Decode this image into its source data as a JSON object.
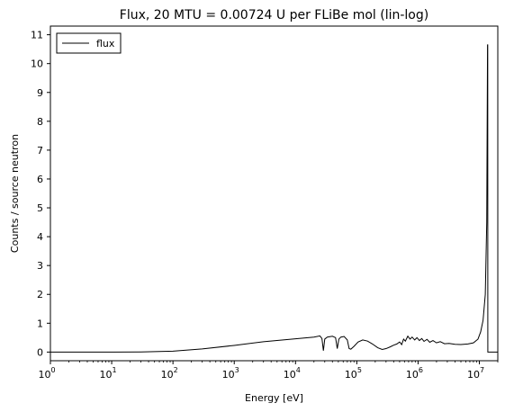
{
  "chart_data": {
    "type": "line",
    "title": "Flux, 20 MTU = 0.00724 U per FLiBe mol (lin-log)",
    "xlabel": "Energy [eV]",
    "ylabel": "Counts / source neutron",
    "xscale": "log",
    "xlim": [
      1,
      20000000
    ],
    "ylim": [
      -0.3,
      11.3
    ],
    "x_tick_labels": [
      {
        "base": "10",
        "exp": "0"
      },
      {
        "base": "10",
        "exp": "1"
      },
      {
        "base": "10",
        "exp": "2"
      },
      {
        "base": "10",
        "exp": "3"
      },
      {
        "base": "10",
        "exp": "4"
      },
      {
        "base": "10",
        "exp": "5"
      },
      {
        "base": "10",
        "exp": "6"
      },
      {
        "base": "10",
        "exp": "7"
      }
    ],
    "y_ticks": [
      0,
      1,
      2,
      3,
      4,
      5,
      6,
      7,
      8,
      9,
      10,
      11
    ],
    "legend_position": "upper-left",
    "grid": false,
    "series": [
      {
        "name": "flux",
        "color": "#000000",
        "points": [
          [
            1,
            0.0
          ],
          [
            10,
            0.0
          ],
          [
            30,
            0.005
          ],
          [
            100,
            0.03
          ],
          [
            300,
            0.11
          ],
          [
            1000,
            0.23
          ],
          [
            3000,
            0.36
          ],
          [
            10000,
            0.46
          ],
          [
            20000,
            0.52
          ],
          [
            25000,
            0.56
          ],
          [
            27000,
            0.47
          ],
          [
            28500,
            0.05
          ],
          [
            30000,
            0.45
          ],
          [
            33000,
            0.52
          ],
          [
            40000,
            0.55
          ],
          [
            45000,
            0.5
          ],
          [
            48000,
            0.12
          ],
          [
            51000,
            0.45
          ],
          [
            55000,
            0.52
          ],
          [
            62000,
            0.54
          ],
          [
            70000,
            0.42
          ],
          [
            75000,
            0.12
          ],
          [
            80000,
            0.1
          ],
          [
            90000,
            0.2
          ],
          [
            105000,
            0.35
          ],
          [
            125000,
            0.42
          ],
          [
            150000,
            0.38
          ],
          [
            180000,
            0.28
          ],
          [
            220000,
            0.15
          ],
          [
            260000,
            0.09
          ],
          [
            300000,
            0.12
          ],
          [
            350000,
            0.18
          ],
          [
            400000,
            0.24
          ],
          [
            450000,
            0.28
          ],
          [
            500000,
            0.35
          ],
          [
            540000,
            0.26
          ],
          [
            580000,
            0.45
          ],
          [
            620000,
            0.38
          ],
          [
            680000,
            0.55
          ],
          [
            740000,
            0.45
          ],
          [
            800000,
            0.52
          ],
          [
            880000,
            0.42
          ],
          [
            960000,
            0.5
          ],
          [
            1050000,
            0.4
          ],
          [
            1150000,
            0.47
          ],
          [
            1250000,
            0.37
          ],
          [
            1400000,
            0.44
          ],
          [
            1550000,
            0.34
          ],
          [
            1750000,
            0.4
          ],
          [
            2000000,
            0.32
          ],
          [
            2300000,
            0.36
          ],
          [
            2700000,
            0.29
          ],
          [
            3200000,
            0.3
          ],
          [
            4000000,
            0.27
          ],
          [
            5000000,
            0.26
          ],
          [
            6500000,
            0.28
          ],
          [
            8000000,
            0.32
          ],
          [
            9500000,
            0.45
          ],
          [
            10500000,
            0.7
          ],
          [
            11500000,
            1.1
          ],
          [
            12500000,
            2.0
          ],
          [
            13200000,
            4.5
          ],
          [
            13600000,
            10.65
          ],
          [
            13700000,
            10.65
          ],
          [
            13750000,
            0.0
          ],
          [
            20000000,
            0.0
          ]
        ]
      }
    ]
  }
}
